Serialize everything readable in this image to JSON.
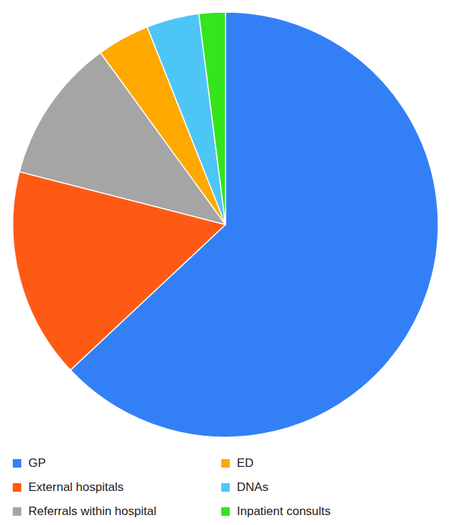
{
  "chart_data": {
    "type": "pie",
    "categories": [
      "GP",
      "External hospitals",
      "Referrals within hospital",
      "ED",
      "DNAs",
      "Inpatient consults"
    ],
    "values": [
      63,
      16,
      11,
      4,
      4,
      2
    ],
    "colors": [
      "#3380f6",
      "#ff5a14",
      "#a5a5a5",
      "#ffa800",
      "#4dc6f7",
      "#33e51a"
    ],
    "legend": "bottom"
  }
}
